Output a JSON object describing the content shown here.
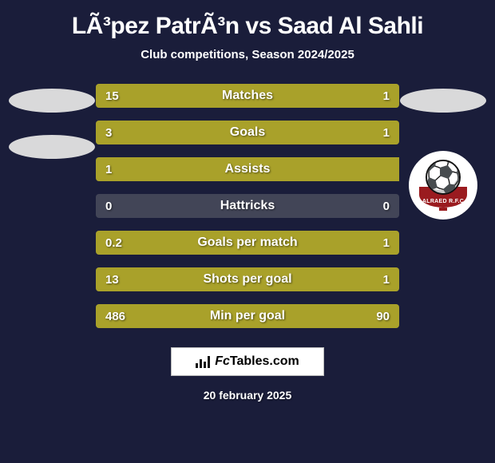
{
  "background_color": "#1a1d3a",
  "title": {
    "text": "LÃ³pez PatrÃ³n vs Saad Al Sahli",
    "color": "#ffffff",
    "fontsize": 30
  },
  "subtitle": {
    "text": "Club competitions, Season 2024/2025",
    "color": "#ffffff",
    "fontsize": 15
  },
  "left_player": {
    "oval_color": "#d9d9da",
    "oval2_color": "#d9d9da"
  },
  "right_player": {
    "oval_color": "#d9d9da",
    "crest": {
      "bg": "#ffffff",
      "banner": "#9a1b1f",
      "text": "ALRAED R.F.C"
    }
  },
  "bars": {
    "track_color": "#424557",
    "fill_color": "#a9a12a",
    "text_color": "#ffffff",
    "label_fontsize": 16,
    "value_fontsize": 15,
    "rows": [
      {
        "label": "Matches",
        "left_val": "15",
        "right_val": "1",
        "left_pct": 94,
        "right_pct": 6
      },
      {
        "label": "Goals",
        "left_val": "3",
        "right_val": "1",
        "left_pct": 75,
        "right_pct": 25
      },
      {
        "label": "Assists",
        "left_val": "1",
        "right_val": "",
        "left_pct": 100,
        "right_pct": 0
      },
      {
        "label": "Hattricks",
        "left_val": "0",
        "right_val": "0",
        "left_pct": 0,
        "right_pct": 0
      },
      {
        "label": "Goals per match",
        "left_val": "0.2",
        "right_val": "1",
        "left_pct": 17,
        "right_pct": 83
      },
      {
        "label": "Shots per goal",
        "left_val": "13",
        "right_val": "1",
        "left_pct": 93,
        "right_pct": 7
      },
      {
        "label": "Min per goal",
        "left_val": "486",
        "right_val": "90",
        "left_pct": 84,
        "right_pct": 16
      }
    ]
  },
  "footer": {
    "brand_prefix": "Fc",
    "brand_rest": "Tables.com",
    "box_border": "#bbbbbb",
    "fontsize": 16
  },
  "date": {
    "text": "20 february 2025",
    "color": "#ffffff",
    "fontsize": 14
  }
}
